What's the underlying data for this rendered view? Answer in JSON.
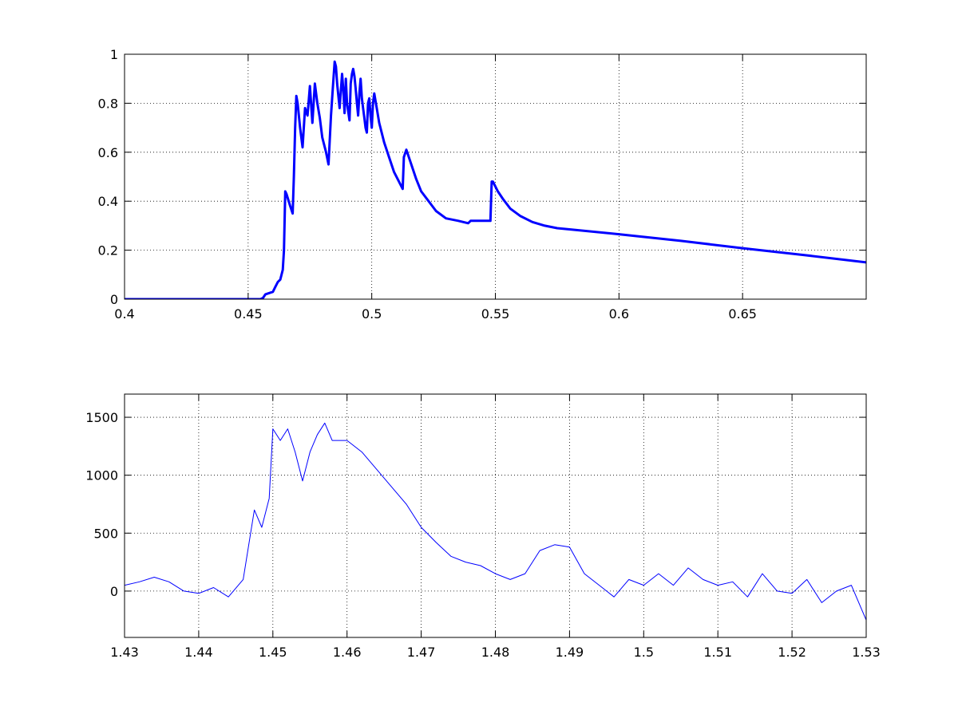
{
  "figure": {
    "background": "#ffffff",
    "line_color": "#0000ff",
    "grid_style": "dotted"
  },
  "chart_data": [
    {
      "type": "line",
      "title": "",
      "xlabel": "",
      "ylabel": "",
      "xlim": [
        0.4,
        0.7
      ],
      "ylim": [
        0,
        1
      ],
      "xticks": [
        0.4,
        0.45,
        0.5,
        0.55,
        0.6,
        0.65
      ],
      "xtick_labels": [
        "0.4",
        "0.45",
        "0.5",
        "0.55",
        "0.6",
        "0.65"
      ],
      "yticks": [
        0,
        0.2,
        0.4,
        0.6,
        0.8,
        1
      ],
      "ytick_labels": [
        "0",
        "0.2",
        "0.4",
        "0.6",
        "0.8",
        "1"
      ],
      "grid": true,
      "line_width": "thick",
      "series": [
        {
          "color": "#0000ff",
          "x": [
            0.4,
            0.455,
            0.456,
            0.457,
            0.46,
            0.461,
            0.462,
            0.463,
            0.464,
            0.4645,
            0.465,
            0.4655,
            0.467,
            0.468,
            0.4685,
            0.469,
            0.4695,
            0.47,
            0.471,
            0.472,
            0.473,
            0.474,
            0.475,
            0.476,
            0.477,
            0.478,
            0.479,
            0.48,
            0.4815,
            0.4825,
            0.4835,
            0.4845,
            0.485,
            0.4855,
            0.486,
            0.487,
            0.488,
            0.4885,
            0.489,
            0.4895,
            0.49,
            0.491,
            0.4915,
            0.492,
            0.4925,
            0.493,
            0.4935,
            0.494,
            0.4945,
            0.495,
            0.4955,
            0.496,
            0.4965,
            0.497,
            0.4975,
            0.498,
            0.4985,
            0.499,
            0.4995,
            0.5,
            0.5005,
            0.501,
            0.502,
            0.503,
            0.505,
            0.507,
            0.509,
            0.511,
            0.5125,
            0.513,
            0.514,
            0.516,
            0.518,
            0.52,
            0.523,
            0.526,
            0.53,
            0.535,
            0.539,
            0.54,
            0.545,
            0.548,
            0.5485,
            0.549,
            0.551,
            0.553,
            0.556,
            0.56,
            0.565,
            0.57,
            0.575,
            0.58,
            0.6,
            0.625,
            0.65,
            0.675,
            0.7
          ],
          "y": [
            0,
            0,
            0.005,
            0.02,
            0.03,
            0.05,
            0.07,
            0.08,
            0.12,
            0.2,
            0.44,
            0.43,
            0.38,
            0.35,
            0.5,
            0.7,
            0.83,
            0.8,
            0.7,
            0.62,
            0.78,
            0.75,
            0.87,
            0.72,
            0.88,
            0.8,
            0.74,
            0.66,
            0.6,
            0.55,
            0.75,
            0.9,
            0.97,
            0.95,
            0.88,
            0.78,
            0.92,
            0.85,
            0.76,
            0.9,
            0.8,
            0.73,
            0.88,
            0.92,
            0.94,
            0.91,
            0.86,
            0.8,
            0.75,
            0.84,
            0.9,
            0.82,
            0.78,
            0.74,
            0.7,
            0.68,
            0.8,
            0.82,
            0.75,
            0.7,
            0.8,
            0.84,
            0.78,
            0.72,
            0.64,
            0.58,
            0.52,
            0.48,
            0.45,
            0.58,
            0.61,
            0.55,
            0.49,
            0.44,
            0.4,
            0.36,
            0.33,
            0.32,
            0.31,
            0.32,
            0.32,
            0.32,
            0.48,
            0.48,
            0.44,
            0.41,
            0.37,
            0.34,
            0.315,
            0.3,
            0.29,
            0.285,
            0.265,
            0.238,
            0.208,
            0.18,
            0.15
          ]
        }
      ]
    },
    {
      "type": "line",
      "title": "",
      "xlabel": "",
      "ylabel": "",
      "xlim": [
        1.43,
        1.53
      ],
      "ylim": [
        -400,
        1700
      ],
      "xticks": [
        1.43,
        1.44,
        1.45,
        1.46,
        1.47,
        1.48,
        1.49,
        1.5,
        1.51,
        1.52,
        1.53
      ],
      "xtick_labels": [
        "1.43",
        "1.44",
        "1.45",
        "1.46",
        "1.47",
        "1.48",
        "1.49",
        "1.5",
        "1.51",
        "1.52",
        "1.53"
      ],
      "yticks": [
        0,
        500,
        1000,
        1500
      ],
      "ytick_labels": [
        "0",
        "500",
        "1000",
        "1500"
      ],
      "grid": true,
      "line_width": "thin",
      "series": [
        {
          "color": "#0000ff",
          "x": [
            1.43,
            1.432,
            1.434,
            1.436,
            1.438,
            1.44,
            1.442,
            1.444,
            1.446,
            1.4475,
            1.4485,
            1.4495,
            1.45,
            1.451,
            1.452,
            1.453,
            1.454,
            1.455,
            1.456,
            1.457,
            1.458,
            1.46,
            1.462,
            1.464,
            1.466,
            1.468,
            1.47,
            1.472,
            1.474,
            1.476,
            1.478,
            1.48,
            1.482,
            1.484,
            1.486,
            1.488,
            1.49,
            1.492,
            1.494,
            1.496,
            1.498,
            1.5,
            1.502,
            1.504,
            1.506,
            1.508,
            1.51,
            1.512,
            1.514,
            1.516,
            1.518,
            1.52,
            1.522,
            1.524,
            1.526,
            1.528,
            1.53
          ],
          "y": [
            50,
            80,
            120,
            80,
            0,
            -20,
            30,
            -50,
            100,
            700,
            550,
            800,
            1400,
            1300,
            1400,
            1200,
            950,
            1200,
            1350,
            1450,
            1300,
            1300,
            1200,
            1050,
            900,
            750,
            550,
            420,
            300,
            250,
            220,
            150,
            100,
            150,
            350,
            400,
            380,
            150,
            50,
            -50,
            100,
            50,
            150,
            50,
            200,
            100,
            50,
            80,
            -50,
            150,
            0,
            -20,
            100,
            -100,
            0,
            50,
            -250
          ]
        }
      ]
    }
  ]
}
